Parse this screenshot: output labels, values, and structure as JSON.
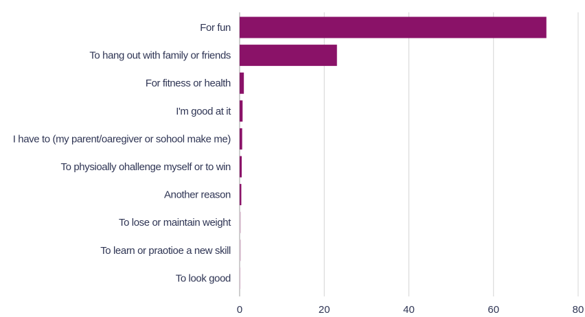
{
  "chart_data": {
    "type": "bar",
    "orientation": "horizontal",
    "title": "",
    "xlabel": "",
    "ylabel": "",
    "categories": [
      "For fun",
      "To hang out with family or friends",
      "For fitness or health",
      "I'm good at it",
      "I have to (my parent/oaregiver or sohool make me)",
      "To physioally ohallenge myself or to win",
      "Another reason",
      "To lose or maintain weight",
      "To learn or praotioe a new skill",
      "To look good"
    ],
    "values": [
      72.5,
      23,
      1.0,
      0.7,
      0.6,
      0.5,
      0.4,
      0.3,
      0.3,
      0.2
    ],
    "xlim": [
      0,
      80
    ],
    "xticks": [
      0,
      20,
      40,
      60,
      80
    ],
    "xtick_labels": [
      "0",
      "20",
      "40",
      "60",
      "80"
    ],
    "grid": true,
    "legend": "none",
    "colors": {
      "bar": "#8a1268",
      "bar_faint": "#d9bfd0",
      "grid": "#d4d4d4",
      "text": "#2f3554"
    }
  }
}
